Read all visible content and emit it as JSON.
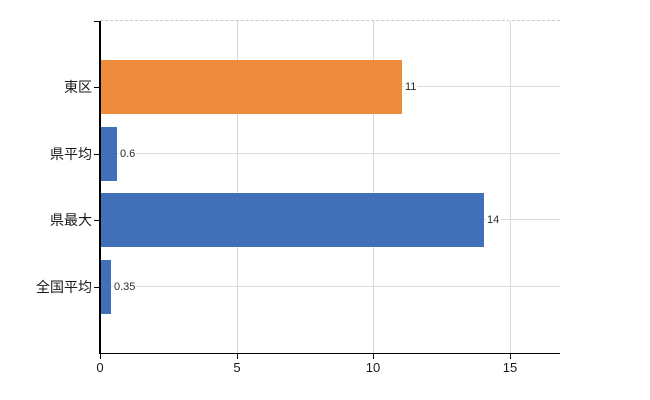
{
  "chart_data": {
    "type": "bar",
    "orientation": "horizontal",
    "title": "",
    "xlabel": "",
    "ylabel": "",
    "categories": [
      "東区",
      "県平均",
      "県最大",
      "全国平均"
    ],
    "values": [
      11,
      0.6,
      14,
      0.35
    ],
    "value_labels": [
      "11",
      "0.6",
      "14",
      "0.35"
    ],
    "bar_colors": [
      "#ED8C3D",
      "#4170B8",
      "#4170B8",
      "#4170B8"
    ],
    "xticks": [
      0,
      5,
      10,
      15
    ],
    "xtick_labels": [
      "0",
      "5",
      "10",
      "15"
    ],
    "xlim": [
      0,
      16.8
    ],
    "grid": true,
    "legend": "none",
    "colors": {
      "orange_series": "#ED8C3D",
      "blue_series": "#4170B8",
      "gridline": "#D9D9D9",
      "axis": "#000000",
      "background": "#FFFFFF"
    }
  }
}
